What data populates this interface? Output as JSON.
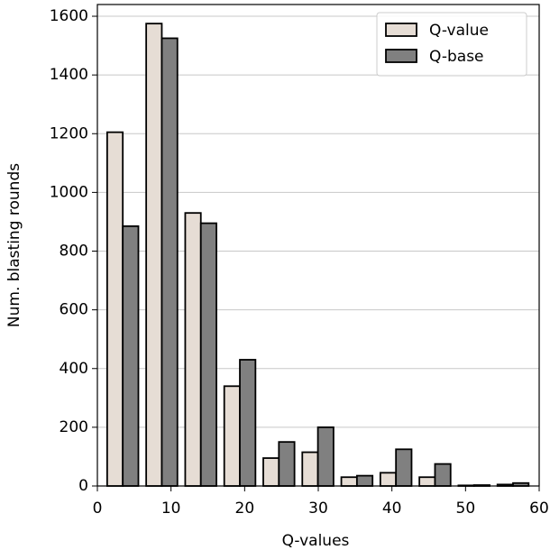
{
  "chart_data": {
    "type": "histogram",
    "xlabel": "Q-values",
    "ylabel": "Num. blasting rounds",
    "bins": [
      0.8,
      6.1,
      11.4,
      16.7,
      22,
      27.3,
      32.6,
      37.9,
      43.2,
      48.5,
      53.8,
      59.1
    ],
    "series": [
      {
        "name": "Q-value",
        "color": "#e6ddd5",
        "values": [
          1205,
          1575,
          930,
          340,
          95,
          115,
          30,
          45,
          30,
          2,
          5
        ]
      },
      {
        "name": "Q-base",
        "color": "#808080",
        "values": [
          885,
          1525,
          895,
          430,
          150,
          200,
          35,
          125,
          75,
          3,
          10
        ]
      }
    ],
    "xlim": [
      0,
      60
    ],
    "xticks": [
      0,
      10,
      20,
      30,
      40,
      50,
      60
    ],
    "ylim": [
      0,
      1640
    ],
    "yticks": [
      0,
      200,
      400,
      600,
      800,
      1000,
      1200,
      1400,
      1600
    ],
    "grid": true,
    "legend": "upper right"
  }
}
